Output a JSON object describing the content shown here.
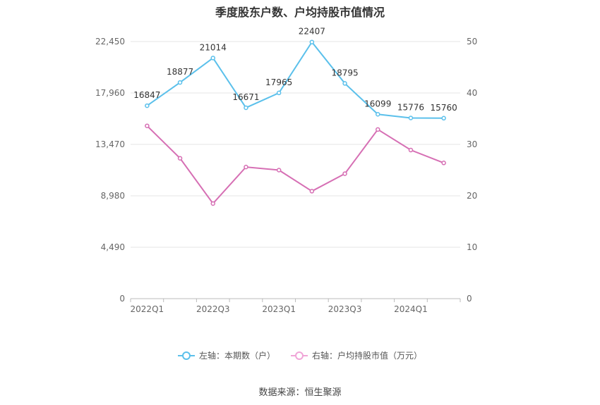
{
  "chart_data": {
    "type": "line",
    "title": "季度股东户数、户均持股市值情况",
    "categories": [
      "2022Q1",
      "2022Q2",
      "2022Q3",
      "2022Q4",
      "2023Q1",
      "2023Q2",
      "2023Q3",
      "2023Q4",
      "2024Q1",
      "2024Q2"
    ],
    "x_tick_labels": [
      "2022Q1",
      "",
      "2022Q3",
      "",
      "2023Q1",
      "",
      "2023Q3",
      "",
      "2024Q1",
      ""
    ],
    "left_axis": {
      "ylim": [
        0,
        22450
      ],
      "ticks": [
        "0",
        "4,490",
        "8,980",
        "13,470",
        "17,960",
        "22,450"
      ],
      "tick_values": [
        0,
        4490,
        8980,
        13470,
        17960,
        22450
      ]
    },
    "right_axis": {
      "ylim": [
        0,
        50
      ],
      "ticks": [
        "0",
        "10",
        "20",
        "30",
        "40",
        "50"
      ],
      "tick_values": [
        0,
        10,
        20,
        30,
        40,
        50
      ]
    },
    "series": [
      {
        "name": "左轴：本期数（户）",
        "axis": "left",
        "color": "#5bc0eb",
        "values": [
          16847,
          18877,
          21014,
          16671,
          17965,
          22407,
          18795,
          16099,
          15776,
          15760
        ],
        "labels": [
          "16847",
          "18877",
          "21014",
          "16671",
          "17965",
          "22407",
          "18795",
          "16099",
          "15776",
          "15760"
        ]
      },
      {
        "name": "右轴：户均持股市值（万元）",
        "axis": "right",
        "color": "#d66fb4",
        "values": [
          33.6,
          27.3,
          18.5,
          25.6,
          25.0,
          20.9,
          24.3,
          32.9,
          28.9,
          26.4
        ]
      }
    ],
    "grid": true,
    "legend_position": "bottom"
  },
  "source": "数据来源：恒生聚源"
}
